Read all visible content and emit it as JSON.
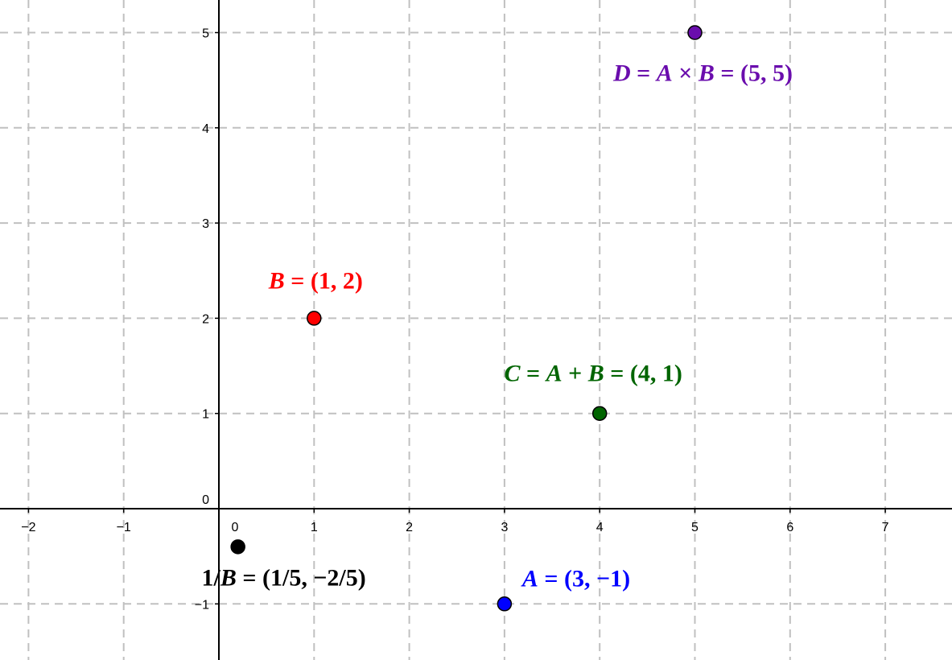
{
  "chart_data": {
    "type": "scatter",
    "xlim": [
      -2.3,
      7.7
    ],
    "ylim": [
      -1.6,
      5.35
    ],
    "grid": true,
    "x_ticks": [
      -2,
      -1,
      0,
      1,
      2,
      3,
      4,
      5,
      6,
      7
    ],
    "y_ticks": [
      -1,
      0,
      1,
      2,
      3,
      4,
      5
    ],
    "x_tick_labels": [
      "−2",
      "−1",
      "0",
      "1",
      "2",
      "3",
      "4",
      "5",
      "6",
      "7"
    ],
    "y_tick_labels": [
      "−1",
      "0",
      "1",
      "2",
      "3",
      "4",
      "5"
    ],
    "points": [
      {
        "id": "point-a",
        "x": 3,
        "y": -1,
        "color": "#0000ff",
        "label_parts": [
          [
            "v",
            "A"
          ],
          [
            "t",
            " = (3, −1)"
          ]
        ]
      },
      {
        "id": "point-b",
        "x": 1,
        "y": 2,
        "color": "#ff0000",
        "label_parts": [
          [
            "v",
            "B"
          ],
          [
            "t",
            " = (1, 2)"
          ]
        ]
      },
      {
        "id": "point-c",
        "x": 4,
        "y": 1,
        "color": "#006400",
        "label_parts": [
          [
            "v",
            "C"
          ],
          [
            "t",
            " = "
          ],
          [
            "v",
            "A"
          ],
          [
            "t",
            " + "
          ],
          [
            "v",
            "B"
          ],
          [
            "t",
            " = (4, 1)"
          ]
        ]
      },
      {
        "id": "point-d",
        "x": 5,
        "y": 5,
        "color": "#6a0dad",
        "label_parts": [
          [
            "v",
            "D"
          ],
          [
            "t",
            " = "
          ],
          [
            "v",
            "A"
          ],
          [
            "t",
            " × "
          ],
          [
            "v",
            "B"
          ],
          [
            "t",
            " = (5, 5)"
          ]
        ]
      },
      {
        "id": "point-inverse-b",
        "x": 0.2,
        "y": -0.4,
        "color": "#000000",
        "label_parts": [
          [
            "t",
            "1/"
          ],
          [
            "v",
            "B"
          ],
          [
            "t",
            " = (1/5, −2/5)"
          ]
        ]
      }
    ]
  }
}
